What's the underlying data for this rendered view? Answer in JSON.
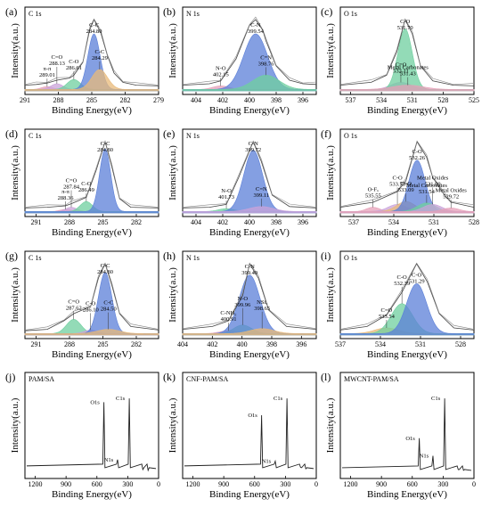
{
  "chart_data": [
    {
      "type": "line",
      "letter": "(a)",
      "title": "C 1s",
      "xlabel": "Binding Energy(eV)",
      "ylabel": "Intensity(a.u.)",
      "xlim": [
        291,
        279
      ],
      "ticks": [
        291,
        288,
        285,
        282,
        279
      ],
      "envelope": [
        [
          291,
          0.08
        ],
        [
          290,
          0.09
        ],
        [
          289.01,
          0.11
        ],
        [
          288.13,
          0.15
        ],
        [
          287,
          0.18
        ],
        [
          286.61,
          0.22
        ],
        [
          285.8,
          0.4
        ],
        [
          285.2,
          0.85
        ],
        [
          284.8,
          1.0
        ],
        [
          284.2,
          0.82
        ],
        [
          283.6,
          0.5
        ],
        [
          283,
          0.25
        ],
        [
          282.2,
          0.12
        ],
        [
          281,
          0.08
        ],
        [
          279,
          0.07
        ]
      ],
      "peaks": [
        {
          "label": "π-π",
          "energy": "289.01",
          "center": 289.01,
          "height": 0.04,
          "width": 0.5,
          "color": "#e6a0b8"
        },
        {
          "label": "C=O",
          "energy": "288.13",
          "center": 288.13,
          "height": 0.08,
          "width": 0.55,
          "color": "#c9a3d9"
        },
        {
          "label": "C-O",
          "energy": "286.61",
          "center": 286.61,
          "height": 0.14,
          "width": 0.6,
          "color": "#6fcf9f"
        },
        {
          "label": "C-C",
          "energy": "284.80",
          "center": 284.8,
          "height": 0.78,
          "width": 0.55,
          "color": "#5b7fd8"
        },
        {
          "label": "C-C",
          "energy": "284.29",
          "center": 284.29,
          "height": 0.28,
          "width": 0.7,
          "color": "#e8b97a"
        }
      ]
    },
    {
      "type": "line",
      "letter": "(b)",
      "title": "N 1s",
      "xlabel": "Binding Energy(eV)",
      "ylabel": "Intensity(a.u.)",
      "xlim": [
        405,
        395
      ],
      "ticks": [
        404,
        402,
        400,
        398,
        396
      ],
      "envelope": [
        [
          405,
          0.08
        ],
        [
          403,
          0.1
        ],
        [
          402.15,
          0.14
        ],
        [
          401,
          0.45
        ],
        [
          400,
          0.92
        ],
        [
          399.54,
          1.0
        ],
        [
          399,
          0.85
        ],
        [
          398.76,
          0.7
        ],
        [
          398,
          0.35
        ],
        [
          397,
          0.15
        ],
        [
          396,
          0.1
        ],
        [
          395,
          0.09
        ]
      ],
      "peaks": [
        {
          "label": "N-O",
          "energy": "402.15",
          "center": 402.15,
          "height": 0.05,
          "width": 0.6,
          "color": "#e6a0b8"
        },
        {
          "label": "C-N",
          "energy": "399.54",
          "center": 399.54,
          "height": 0.78,
          "width": 0.9,
          "color": "#5b7fd8"
        },
        {
          "label": "C=N",
          "energy": "398.76",
          "center": 398.76,
          "height": 0.2,
          "width": 1.0,
          "color": "#6fcf9f"
        }
      ]
    },
    {
      "type": "line",
      "letter": "(c)",
      "title": "O 1s",
      "xlabel": "Binding Energy(eV)",
      "ylabel": "Intensity(a.u.)",
      "xlim": [
        538,
        525
      ],
      "ticks": [
        537,
        534,
        531,
        528,
        525
      ],
      "envelope": [
        [
          538,
          0.08
        ],
        [
          535,
          0.12
        ],
        [
          533.5,
          0.22
        ],
        [
          532.5,
          0.55
        ],
        [
          531.7,
          1.0
        ],
        [
          531,
          0.8
        ],
        [
          530.2,
          0.35
        ],
        [
          529,
          0.14
        ],
        [
          527,
          0.08
        ],
        [
          525,
          0.07
        ]
      ],
      "peaks": [
        {
          "label": "C=O",
          "energy": "532.11",
          "center": 532.11,
          "height": 0.1,
          "width": 1.0,
          "color": "#c9a3d9"
        },
        {
          "label": "C-O",
          "energy": "531.70",
          "center": 531.7,
          "height": 0.85,
          "width": 0.7,
          "color": "#6fcf9f"
        },
        {
          "label": "Metal Carbonates",
          "energy": "531.43",
          "center": 531.43,
          "height": 0.06,
          "width": 1.5,
          "color": "#e6a0b8"
        }
      ]
    },
    {
      "type": "line",
      "letter": "(d)",
      "title": "C 1s",
      "xlabel": "Binding Energy(eV)",
      "ylabel": "Intensity(a.u.)",
      "xlim": [
        292,
        280
      ],
      "ticks": [
        291,
        288,
        285,
        282
      ],
      "envelope": [
        [
          292,
          0.07
        ],
        [
          290,
          0.08
        ],
        [
          288.36,
          0.1
        ],
        [
          287.84,
          0.13
        ],
        [
          286.49,
          0.22
        ],
        [
          285.6,
          0.6
        ],
        [
          284.8,
          1.0
        ],
        [
          284.2,
          0.65
        ],
        [
          283.5,
          0.2
        ],
        [
          282.5,
          0.08
        ],
        [
          280,
          0.07
        ]
      ],
      "peaks": [
        {
          "label": "π-π",
          "energy": "288.36",
          "center": 288.36,
          "height": 0.03,
          "width": 0.5,
          "color": "#e6a0b8"
        },
        {
          "label": "C=O",
          "energy": "287.84",
          "center": 287.84,
          "height": 0.06,
          "width": 0.5,
          "color": "#c9a3d9"
        },
        {
          "label": "C-O",
          "energy": "286.49",
          "center": 286.49,
          "height": 0.14,
          "width": 0.55,
          "color": "#6fcf9f"
        },
        {
          "label": "C-C",
          "energy": "284.80",
          "center": 284.8,
          "height": 0.88,
          "width": 0.5,
          "color": "#5b7fd8"
        }
      ]
    },
    {
      "type": "line",
      "letter": "(e)",
      "title": "N 1s",
      "xlabel": "Binding Energy(eV)",
      "ylabel": "Intensity(a.u.)",
      "xlim": [
        405,
        395
      ],
      "ticks": [
        404,
        402,
        400,
        398,
        396
      ],
      "envelope": [
        [
          405,
          0.07
        ],
        [
          403,
          0.08
        ],
        [
          401.73,
          0.12
        ],
        [
          400.8,
          0.5
        ],
        [
          399.72,
          1.0
        ],
        [
          399.11,
          0.72
        ],
        [
          398.3,
          0.25
        ],
        [
          397,
          0.09
        ],
        [
          395,
          0.07
        ]
      ],
      "peaks": [
        {
          "label": "N-O",
          "energy": "401.73",
          "center": 401.73,
          "height": 0.04,
          "width": 0.6,
          "color": "#6fcf9f"
        },
        {
          "label": "C-N",
          "energy": "399.72",
          "center": 399.72,
          "height": 0.86,
          "width": 0.7,
          "color": "#5b7fd8"
        },
        {
          "label": "C=N",
          "energy": "399.11",
          "center": 399.11,
          "height": 0.07,
          "width": 0.9,
          "color": "#c9a3d9"
        }
      ]
    },
    {
      "type": "line",
      "letter": "(f)",
      "title": "O 1s",
      "xlabel": "Binding Energy(eV)",
      "ylabel": "Intensity(a.u.)",
      "xlim": [
        538,
        528
      ],
      "ticks": [
        537,
        534,
        531,
        528
      ],
      "envelope": [
        [
          538,
          0.08
        ],
        [
          535.55,
          0.15
        ],
        [
          533.73,
          0.3
        ],
        [
          533.09,
          0.45
        ],
        [
          532.26,
          1.0
        ],
        [
          531.54,
          0.78
        ],
        [
          531.09,
          0.5
        ],
        [
          530.2,
          0.25
        ],
        [
          529.72,
          0.15
        ],
        [
          528,
          0.08
        ]
      ],
      "peaks": [
        {
          "label": "O-Fₓ",
          "energy": "535.55",
          "center": 535.55,
          "height": 0.06,
          "width": 0.5,
          "color": "#e6a0b8"
        },
        {
          "label": "C-O",
          "energy": "533.73",
          "center": 533.73,
          "height": 0.1,
          "width": 0.7,
          "color": "#c9a3d9"
        },
        {
          "label": "C=O",
          "energy": "533.09",
          "center": 533.09,
          "height": 0.14,
          "width": 0.7,
          "color": "#e8b97a"
        },
        {
          "label": "C-O",
          "energy": "532.26",
          "center": 532.26,
          "height": 0.72,
          "width": 0.6,
          "color": "#5b7fd8"
        },
        {
          "label": "Metal Carbonates",
          "energy": "531.54",
          "center": 531.54,
          "height": 0.12,
          "width": 0.7,
          "color": "#6fcf9f"
        },
        {
          "label": "Metal Oxides",
          "energy": "531.09",
          "center": 531.09,
          "height": 0.1,
          "width": 0.7,
          "color": "#c9a3d9"
        },
        {
          "label": "Metal Oxides",
          "energy": "529.72",
          "center": 529.72,
          "height": 0.05,
          "width": 0.6,
          "color": "#e6a0b8"
        }
      ]
    },
    {
      "type": "line",
      "letter": "(g)",
      "title": "C 1s",
      "xlabel": "Binding Energy(eV)",
      "ylabel": "Intensity(a.u.)",
      "xlim": [
        292,
        280
      ],
      "ticks": [
        291,
        288,
        285,
        282
      ],
      "envelope": [
        [
          292,
          0.06
        ],
        [
          290,
          0.08
        ],
        [
          288.5,
          0.2
        ],
        [
          287.62,
          0.3
        ],
        [
          286.1,
          0.4
        ],
        [
          285.4,
          0.8
        ],
        [
          284.8,
          1.0
        ],
        [
          284.2,
          0.7
        ],
        [
          283.5,
          0.3
        ],
        [
          282.5,
          0.12
        ],
        [
          280,
          0.07
        ]
      ],
      "peaks": [
        {
          "label": "C=O",
          "energy": "287.62",
          "center": 287.62,
          "height": 0.2,
          "width": 0.65,
          "color": "#6fcf9f"
        },
        {
          "label": "C-O",
          "energy": "286.10",
          "center": 286.1,
          "height": 0.05,
          "width": 0.6,
          "color": "#c9a3d9"
        },
        {
          "label": "C-C",
          "energy": "284.80",
          "center": 284.8,
          "height": 0.86,
          "width": 0.6,
          "color": "#5b7fd8"
        },
        {
          "label": "C-C",
          "energy": "284.50",
          "center": 284.5,
          "height": 0.06,
          "width": 1.0,
          "color": "#e8b97a"
        }
      ]
    },
    {
      "type": "line",
      "letter": "(h)",
      "title": "N 1s",
      "xlabel": "Binding Energy(eV)",
      "ylabel": "Intensity(a.u.)",
      "xlim": [
        404,
        395
      ],
      "ticks": [
        404,
        402,
        400,
        398,
        396
      ],
      "envelope": [
        [
          404,
          0.08
        ],
        [
          402,
          0.12
        ],
        [
          400.91,
          0.2
        ],
        [
          399.96,
          0.55
        ],
        [
          399.49,
          1.0
        ],
        [
          398.9,
          0.8
        ],
        [
          398.2,
          0.35
        ],
        [
          397,
          0.12
        ],
        [
          395,
          0.08
        ]
      ],
      "peaks": [
        {
          "label": "C-NH₂",
          "energy": "400.91",
          "center": 400.91,
          "height": 0.04,
          "width": 0.6,
          "color": "#e6a0b8"
        },
        {
          "label": "N-O",
          "energy": "399.96",
          "center": 399.96,
          "height": 0.12,
          "width": 0.6,
          "color": "#6fcf9f"
        },
        {
          "label": "C-N",
          "energy": "399.49",
          "center": 399.49,
          "height": 0.82,
          "width": 0.7,
          "color": "#5b7fd8"
        },
        {
          "label": "NSiₓ",
          "energy": "398.65",
          "center": 398.65,
          "height": 0.07,
          "width": 0.8,
          "color": "#e8b97a"
        }
      ]
    },
    {
      "type": "line",
      "letter": "(i)",
      "title": "O 1s",
      "xlabel": "Binding Energy(eV)",
      "ylabel": "Intensity(a.u.)",
      "xlim": [
        537,
        527
      ],
      "ticks": [
        537,
        534,
        531,
        528
      ],
      "envelope": [
        [
          537,
          0.07
        ],
        [
          535,
          0.12
        ],
        [
          533.54,
          0.28
        ],
        [
          532.39,
          0.6
        ],
        [
          531.29,
          1.0
        ],
        [
          530.5,
          0.75
        ],
        [
          529.6,
          0.3
        ],
        [
          528.5,
          0.1
        ],
        [
          527,
          0.07
        ]
      ],
      "peaks": [
        {
          "label": "C=O",
          "energy": "533.54",
          "center": 533.54,
          "height": 0.08,
          "width": 0.9,
          "color": "#e8b97a"
        },
        {
          "label": "C-O",
          "energy": "532.39",
          "center": 532.39,
          "height": 0.42,
          "width": 0.8,
          "color": "#6fcf9f"
        },
        {
          "label": "C-O",
          "energy": "531.29",
          "center": 531.29,
          "height": 0.7,
          "width": 0.75,
          "color": "#5b7fd8"
        }
      ]
    },
    {
      "type": "line",
      "letter": "(j)",
      "title": "PAM/SA",
      "xlabel": "Binding Energy(eV)",
      "ylabel": "Intensity(a.u.)",
      "xlim": [
        1300,
        0
      ],
      "ticks": [
        1200,
        900,
        600,
        300,
        0
      ],
      "baseline": 0.12,
      "spikes": [
        [
          532,
          0.95,
          "O1s"
        ],
        [
          399,
          0.2,
          "N1s"
        ],
        [
          285,
          1.0,
          "C1s"
        ],
        [
          153,
          0.07,
          ""
        ],
        [
          102,
          0.06,
          ""
        ]
      ],
      "peaks": []
    },
    {
      "type": "line",
      "letter": "(k)",
      "title": "CNF-PAM/SA",
      "xlabel": "Binding Energy(eV)",
      "ylabel": "Intensity(a.u.)",
      "xlim": [
        1300,
        0
      ],
      "ticks": [
        1200,
        900,
        600,
        300,
        0
      ],
      "baseline": 0.12,
      "spikes": [
        [
          532,
          0.78,
          "O1s"
        ],
        [
          399,
          0.18,
          "N1s"
        ],
        [
          285,
          1.0,
          "C1s"
        ],
        [
          153,
          0.1,
          ""
        ],
        [
          102,
          0.08,
          ""
        ]
      ],
      "peaks": []
    },
    {
      "type": "line",
      "letter": "(l)",
      "title": "MWCNT-PAM/SA",
      "xlabel": "Binding Energy(eV)",
      "ylabel": "Intensity(a.u.)",
      "xlim": [
        1300,
        0
      ],
      "ticks": [
        1200,
        900,
        600,
        300,
        0
      ],
      "baseline": 0.1,
      "spikes": [
        [
          532,
          0.48,
          "O1s"
        ],
        [
          399,
          0.25,
          "N1s"
        ],
        [
          285,
          1.0,
          "C1s"
        ],
        [
          153,
          0.07,
          ""
        ],
        [
          102,
          0.06,
          ""
        ]
      ],
      "peaks": []
    }
  ]
}
